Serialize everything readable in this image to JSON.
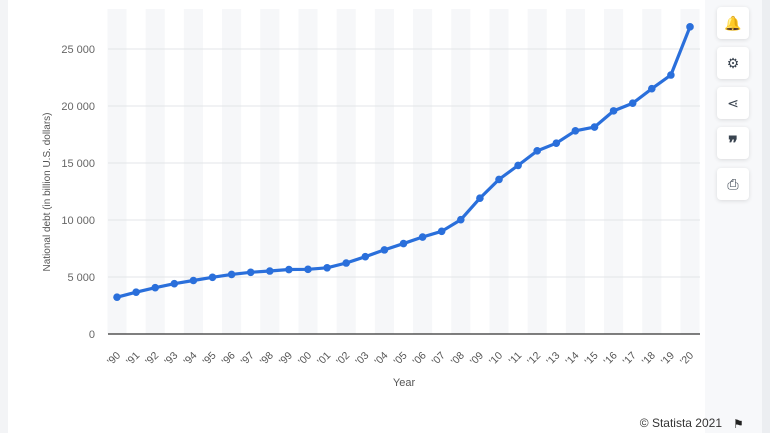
{
  "chart_data": {
    "type": "line",
    "title": "",
    "xlabel": "Year",
    "ylabel": "National debt (in billion U.S. dollars)",
    "ylim": [
      0,
      25000
    ],
    "yticks": [
      0,
      5000,
      10000,
      15000,
      20000,
      25000
    ],
    "ytick_labels": [
      "0",
      "5 000",
      "10 000",
      "15 000",
      "20 000",
      "25 000"
    ],
    "categories": [
      "'90",
      "'91",
      "'92",
      "'93",
      "'94",
      "'95",
      "'96",
      "'97",
      "'98",
      "'99",
      "'00",
      "'01",
      "'02",
      "'03",
      "'04",
      "'05",
      "'06",
      "'07",
      "'08",
      "'09",
      "'10",
      "'11",
      "'12",
      "'13",
      "'14",
      "'15",
      "'16",
      "'17",
      "'18",
      "'19",
      "'20"
    ],
    "series": [
      {
        "name": "National debt",
        "color": "#2a6fdb",
        "values": [
          3233,
          3665,
          4065,
          4411,
          4693,
          4974,
          5225,
          5413,
          5526,
          5656,
          5674,
          5807,
          6228,
          6783,
          7379,
          7933,
          8507,
          9008,
          10025,
          11910,
          13562,
          14790,
          16066,
          16738,
          17824,
          18151,
          19573,
          20245,
          21516,
          22719,
          26945
        ]
      }
    ],
    "grid": true,
    "legend": "none"
  },
  "toolbar": {
    "icons": [
      "bell-icon",
      "gear-icon",
      "share-icon",
      "quote-icon",
      "print-icon"
    ],
    "glyphs": [
      "🔔",
      "⚙",
      "⋖",
      "❞",
      "⎙"
    ]
  },
  "footer": {
    "credit": "© Statista 2021",
    "flag": "⚑"
  }
}
